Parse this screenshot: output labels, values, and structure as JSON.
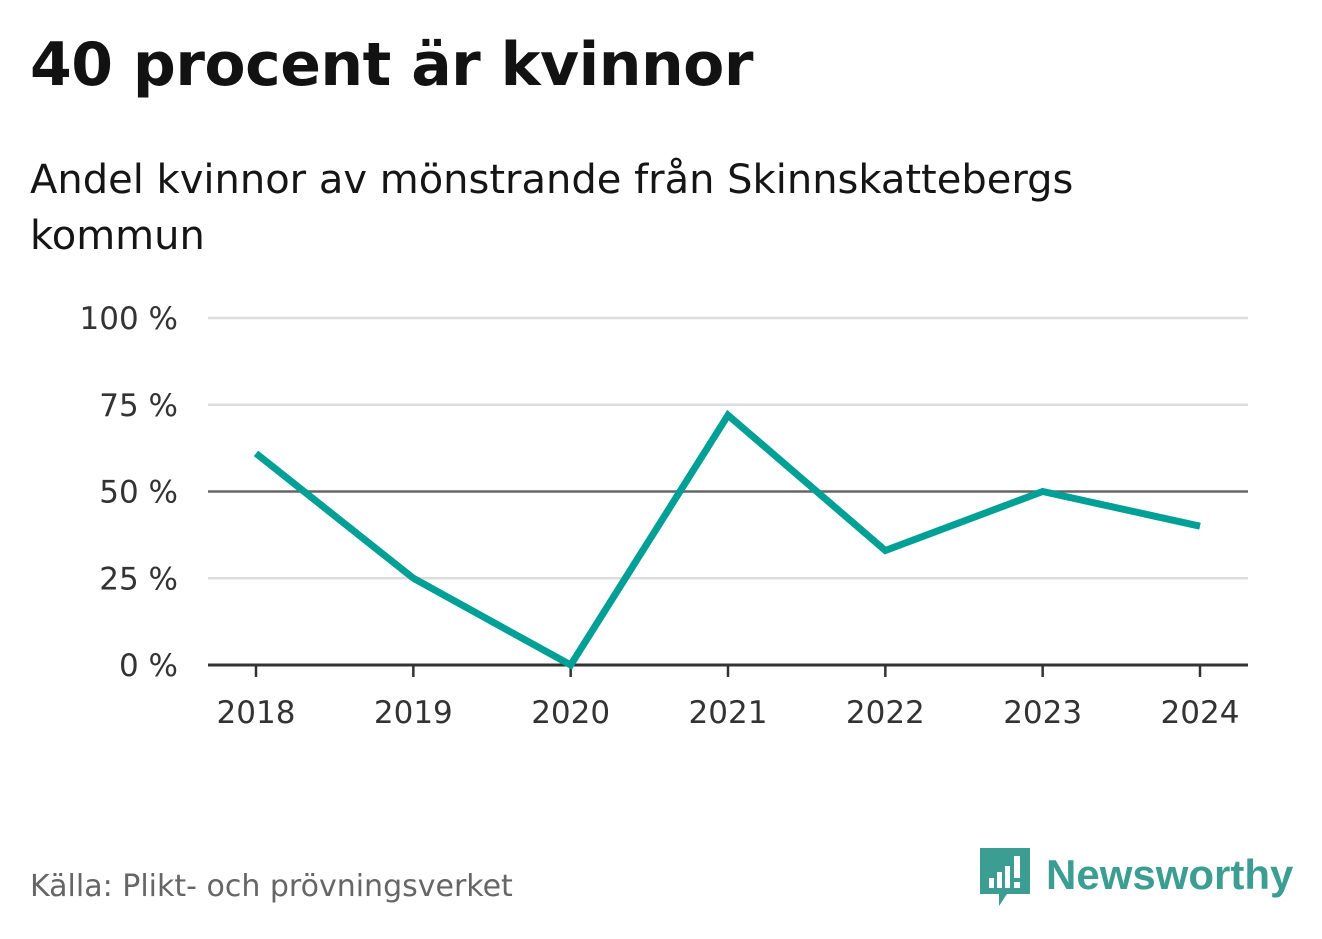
{
  "title": "40 procent är kvinnor",
  "subtitle": "Andel kvinnor av mönstrande från Skinnskattebergs kommun",
  "source": "Källa: Plikt- och prövningsverket",
  "brand": {
    "name": "Newsworthy",
    "logo_icon": "bar-chart-speech-bubble-icon",
    "color": "#3c9e92"
  },
  "chart_data": {
    "type": "line",
    "x": [
      "2018",
      "2019",
      "2020",
      "2021",
      "2022",
      "2023",
      "2024"
    ],
    "series": [
      {
        "values": [
          61,
          25,
          0,
          72,
          33,
          50,
          40
        ],
        "color": "#00a096"
      }
    ],
    "yticks": [
      0,
      25,
      50,
      75,
      100
    ],
    "ytick_labels": [
      "0 %",
      "25 %",
      "50 %",
      "75 %",
      "100 %"
    ],
    "ylim": [
      0,
      100
    ],
    "reference_line": 50,
    "grid": true,
    "gridline_color": "#dddddd",
    "reference_line_color": "#666666",
    "axis_color": "#333333"
  }
}
